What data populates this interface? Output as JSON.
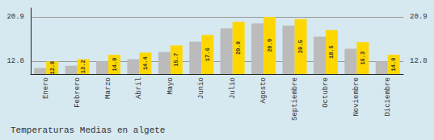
{
  "chart_data": {
    "type": "bar",
    "title": "Temperaturas Medias en algete",
    "categories": [
      "Enero",
      "Febrero",
      "Marzo",
      "Abril",
      "Mayo",
      "Junio",
      "Julio",
      "Agosto",
      "Septiembre",
      "Octubre",
      "Noviembre",
      "Diciembre"
    ],
    "series": [
      {
        "color": "#BBBBBB",
        "values": [
          11.6,
          12.0,
          12.8,
          13.2,
          14.5,
          16.4,
          18.8,
          19.7,
          19.3,
          17.3,
          15.1,
          12.8
        ]
      },
      {
        "color": "#FFD700",
        "values": [
          12.8,
          13.2,
          14.0,
          14.4,
          15.7,
          17.6,
          20.0,
          20.9,
          20.5,
          18.5,
          16.3,
          14.0
        ],
        "value_labels": [
          "12.8",
          "13.2",
          "14.0",
          "14.4",
          "15.7",
          "17.6",
          "20.0",
          "20.9",
          "20.5",
          "18.5",
          "16.3",
          "14.0"
        ],
        "data_labels": true
      }
    ],
    "ylim": [
      10.5,
      22.5
    ],
    "yticks": [
      12.8,
      20.9
    ],
    "grid": true
  }
}
